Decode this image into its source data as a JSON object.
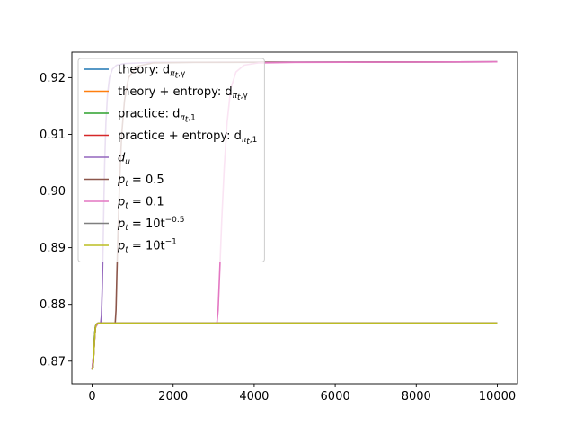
{
  "chart_data": {
    "type": "line",
    "title": "",
    "xlabel": "",
    "ylabel": "",
    "xlim": [
      -500,
      10500
    ],
    "ylim": [
      0.866,
      0.9245
    ],
    "x_ticks": [
      0,
      2000,
      4000,
      6000,
      8000,
      10000
    ],
    "x_tick_labels": [
      "0",
      "2000",
      "4000",
      "6000",
      "8000",
      "10000"
    ],
    "y_ticks": [
      0.87,
      0.88,
      0.89,
      0.9,
      0.91,
      0.92
    ],
    "y_tick_labels": [
      "0.87",
      "0.88",
      "0.89",
      "0.90",
      "0.91",
      "0.92"
    ],
    "grid": false,
    "legend_position": "upper-left",
    "series": [
      {
        "name": "theory: d_{π_t,γ}",
        "legend": {
          "main": "theory: d",
          "sub": "π",
          "subsub": "t",
          "subtail": ",γ",
          "sup": ""
        },
        "color": "#1f77b4",
        "points": [
          [
            0,
            0.8685
          ],
          [
            20,
            0.8688
          ],
          [
            40,
            0.8715
          ],
          [
            60,
            0.8745
          ],
          [
            80,
            0.876
          ],
          [
            100,
            0.8765
          ],
          [
            150,
            0.8767
          ],
          [
            10000,
            0.8767
          ]
        ]
      },
      {
        "name": "theory + entropy: d_{π_t,γ}",
        "legend": {
          "main": "theory + entropy: d",
          "sub": "π",
          "subsub": "t",
          "subtail": ",γ",
          "sup": ""
        },
        "color": "#ff7f0e",
        "points": [
          [
            0,
            0.8685
          ],
          [
            20,
            0.8688
          ],
          [
            40,
            0.8712
          ],
          [
            60,
            0.874
          ],
          [
            80,
            0.8758
          ],
          [
            100,
            0.8765
          ],
          [
            150,
            0.8767
          ],
          [
            10000,
            0.8767
          ]
        ]
      },
      {
        "name": "practice: d_{π_t,1}",
        "legend": {
          "main": "practice: d",
          "sub": "π",
          "subsub": "t",
          "subtail": ",1",
          "sup": ""
        },
        "color": "#2ca02c",
        "points": [
          [
            0,
            0.8685
          ],
          [
            20,
            0.8688
          ],
          [
            40,
            0.8715
          ],
          [
            60,
            0.8745
          ],
          [
            80,
            0.876
          ],
          [
            100,
            0.8765
          ],
          [
            150,
            0.8767
          ],
          [
            10000,
            0.8767
          ]
        ]
      },
      {
        "name": "practice + entropy: d_{π_t,1}",
        "legend": {
          "main": "practice + entropy: d",
          "sub": "π",
          "subsub": "t",
          "subtail": ",1",
          "sup": ""
        },
        "color": "#d62728",
        "points": [
          [
            0,
            0.8685
          ],
          [
            20,
            0.8688
          ],
          [
            40,
            0.8712
          ],
          [
            60,
            0.874
          ],
          [
            80,
            0.8758
          ],
          [
            100,
            0.8765
          ],
          [
            150,
            0.8767
          ],
          [
            10000,
            0.8767
          ]
        ]
      },
      {
        "name": "d_u",
        "legend": {
          "main": "d",
          "sub": "u",
          "subsub": "",
          "subtail": "",
          "sup": ""
        },
        "color": "#9467bd",
        "points": [
          [
            0,
            0.8685
          ],
          [
            40,
            0.8715
          ],
          [
            80,
            0.876
          ],
          [
            150,
            0.8767
          ],
          [
            210,
            0.8767
          ],
          [
            230,
            0.878
          ],
          [
            250,
            0.883
          ],
          [
            270,
            0.89
          ],
          [
            290,
            0.898
          ],
          [
            310,
            0.905
          ],
          [
            340,
            0.912
          ],
          [
            380,
            0.917
          ],
          [
            430,
            0.92
          ],
          [
            500,
            0.9215
          ],
          [
            600,
            0.9222
          ],
          [
            800,
            0.9225
          ],
          [
            1500,
            0.9227
          ],
          [
            10000,
            0.9228
          ]
        ]
      },
      {
        "name": "p_t = 0.5",
        "legend": {
          "main": "p",
          "sub": "t",
          "subsub": "",
          "subtail": "",
          "sup": "",
          "tail": " = 0.5"
        },
        "color": "#8c564b",
        "points": [
          [
            0,
            0.8685
          ],
          [
            40,
            0.8715
          ],
          [
            80,
            0.876
          ],
          [
            150,
            0.8767
          ],
          [
            570,
            0.8767
          ],
          [
            590,
            0.879
          ],
          [
            610,
            0.885
          ],
          [
            640,
            0.893
          ],
          [
            680,
            0.902
          ],
          [
            730,
            0.91
          ],
          [
            800,
            0.916
          ],
          [
            900,
            0.92
          ],
          [
            1100,
            0.922
          ],
          [
            1500,
            0.9226
          ],
          [
            2500,
            0.9227
          ],
          [
            10000,
            0.9228
          ]
        ]
      },
      {
        "name": "p_t = 0.1",
        "legend": {
          "main": "p",
          "sub": "t",
          "subsub": "",
          "subtail": "",
          "sup": "",
          "tail": " = 0.1"
        },
        "color": "#e377c2",
        "points": [
          [
            0,
            0.8685
          ],
          [
            40,
            0.8715
          ],
          [
            80,
            0.876
          ],
          [
            150,
            0.8767
          ],
          [
            3080,
            0.8767
          ],
          [
            3110,
            0.879
          ],
          [
            3150,
            0.886
          ],
          [
            3200,
            0.895
          ],
          [
            3260,
            0.904
          ],
          [
            3330,
            0.912
          ],
          [
            3420,
            0.918
          ],
          [
            3550,
            0.921
          ],
          [
            3750,
            0.9222
          ],
          [
            4100,
            0.9226
          ],
          [
            5000,
            0.9227
          ],
          [
            10000,
            0.9228
          ]
        ]
      },
      {
        "name": "p_t = 10t^{-0.5}",
        "legend": {
          "main": "p",
          "sub": "t",
          "subsub": "",
          "subtail": "",
          "sup": "−0.5",
          "tail": " = 10t"
        },
        "color": "#7f7f7f",
        "points": [
          [
            0,
            0.8685
          ],
          [
            20,
            0.8688
          ],
          [
            40,
            0.8715
          ],
          [
            60,
            0.8745
          ],
          [
            80,
            0.876
          ],
          [
            100,
            0.8765
          ],
          [
            150,
            0.8767
          ],
          [
            10000,
            0.8767
          ]
        ]
      },
      {
        "name": "p_t = 10t^{-1}",
        "legend": {
          "main": "p",
          "sub": "t",
          "subsub": "",
          "subtail": "",
          "sup": "−1",
          "tail": " = 10t"
        },
        "color": "#bcbd22",
        "points": [
          [
            0,
            0.8685
          ],
          [
            20,
            0.8688
          ],
          [
            40,
            0.8712
          ],
          [
            60,
            0.874
          ],
          [
            80,
            0.8758
          ],
          [
            100,
            0.8765
          ],
          [
            150,
            0.8767
          ],
          [
            10000,
            0.8767
          ]
        ]
      }
    ]
  }
}
